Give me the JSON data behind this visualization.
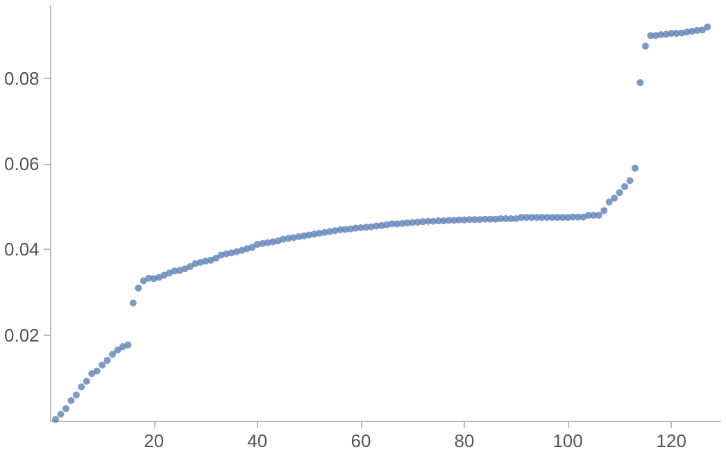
{
  "chart_data": {
    "type": "scatter",
    "color": "#5e81b5",
    "marker": "circle",
    "grid": false,
    "xlim": [
      0,
      129.5
    ],
    "ylim": [
      0,
      0.097
    ],
    "xticks": [
      20,
      40,
      60,
      80,
      100,
      120
    ],
    "yticks": [
      0.02,
      0.04,
      0.06,
      0.08
    ],
    "x": [
      1,
      2,
      3,
      4,
      5,
      6,
      7,
      8,
      9,
      10,
      11,
      12,
      13,
      14,
      15,
      16,
      17,
      18,
      19,
      20,
      21,
      22,
      23,
      24,
      25,
      26,
      27,
      28,
      29,
      30,
      31,
      32,
      33,
      34,
      35,
      36,
      37,
      38,
      39,
      40,
      41,
      42,
      43,
      44,
      45,
      46,
      47,
      48,
      49,
      50,
      51,
      52,
      53,
      54,
      55,
      56,
      57,
      58,
      59,
      60,
      61,
      62,
      63,
      64,
      65,
      66,
      67,
      68,
      69,
      70,
      71,
      72,
      73,
      74,
      75,
      76,
      77,
      78,
      79,
      80,
      81,
      82,
      83,
      84,
      85,
      86,
      87,
      88,
      89,
      90,
      91,
      92,
      93,
      94,
      95,
      96,
      97,
      98,
      99,
      100,
      101,
      102,
      103,
      104,
      105,
      106,
      107,
      108,
      109,
      110,
      111,
      112,
      113,
      114,
      115,
      116,
      117,
      118,
      119,
      120,
      121,
      122,
      123,
      124,
      125,
      126,
      127
    ],
    "values": [
      0.0003,
      0.0015,
      0.0028,
      0.0047,
      0.006,
      0.0079,
      0.0092,
      0.011,
      0.0116,
      0.013,
      0.0141,
      0.0155,
      0.0165,
      0.0173,
      0.0177,
      0.0275,
      0.031,
      0.0327,
      0.0333,
      0.0332,
      0.0335,
      0.034,
      0.0345,
      0.035,
      0.0351,
      0.0355,
      0.036,
      0.0367,
      0.037,
      0.0373,
      0.0375,
      0.038,
      0.0387,
      0.039,
      0.0392,
      0.0395,
      0.0398,
      0.0402,
      0.0405,
      0.0412,
      0.0414,
      0.0416,
      0.0418,
      0.042,
      0.0424,
      0.0426,
      0.0428,
      0.043,
      0.0432,
      0.0434,
      0.0436,
      0.0438,
      0.044,
      0.0442,
      0.0444,
      0.0446,
      0.0447,
      0.0448,
      0.045,
      0.0451,
      0.0452,
      0.0453,
      0.0455,
      0.0456,
      0.0458,
      0.046,
      0.046,
      0.0461,
      0.0462,
      0.0463,
      0.0464,
      0.0465,
      0.0466,
      0.0466,
      0.0467,
      0.0467,
      0.0468,
      0.0468,
      0.0469,
      0.0469,
      0.047,
      0.047,
      0.047,
      0.0471,
      0.0471,
      0.0471,
      0.0472,
      0.0472,
      0.0472,
      0.0472,
      0.0475,
      0.0475,
      0.0475,
      0.0475,
      0.0475,
      0.0475,
      0.0475,
      0.0475,
      0.0475,
      0.0475,
      0.0476,
      0.0476,
      0.0476,
      0.048,
      0.048,
      0.048,
      0.0491,
      0.0511,
      0.052,
      0.0533,
      0.0547,
      0.0561,
      0.059,
      0.079,
      0.0875,
      0.09,
      0.09,
      0.0902,
      0.0903,
      0.0905,
      0.0905,
      0.0906,
      0.0908,
      0.091,
      0.0912,
      0.0913,
      0.092
    ]
  }
}
